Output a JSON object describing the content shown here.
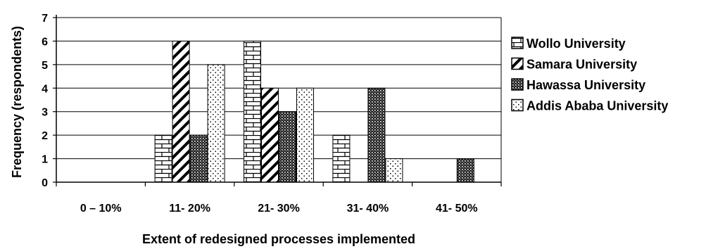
{
  "chart_data": {
    "type": "bar",
    "xlabel": "Extent of redesigned processes implemented",
    "ylabel": "Frequency (respondents)",
    "ylim": [
      0,
      7
    ],
    "yticks": [
      0,
      1,
      2,
      3,
      4,
      5,
      6,
      7
    ],
    "grid": true,
    "legend_position": "right",
    "categories": [
      "0 – 10%",
      "11- 20%",
      "21- 30%",
      "31- 40%",
      "41- 50%"
    ],
    "series": [
      {
        "name": "Wollo University",
        "pattern": "brick",
        "values": [
          0,
          2,
          6,
          2,
          0
        ]
      },
      {
        "name": "Samara University",
        "pattern": "diagonal",
        "values": [
          0,
          6,
          4,
          0,
          0
        ]
      },
      {
        "name": "Hawassa University",
        "pattern": "dense-dots",
        "values": [
          0,
          2,
          3,
          4,
          1
        ]
      },
      {
        "name": "Addis Ababa University",
        "pattern": "sparse-dots",
        "values": [
          0,
          5,
          4,
          1,
          0
        ]
      }
    ]
  }
}
